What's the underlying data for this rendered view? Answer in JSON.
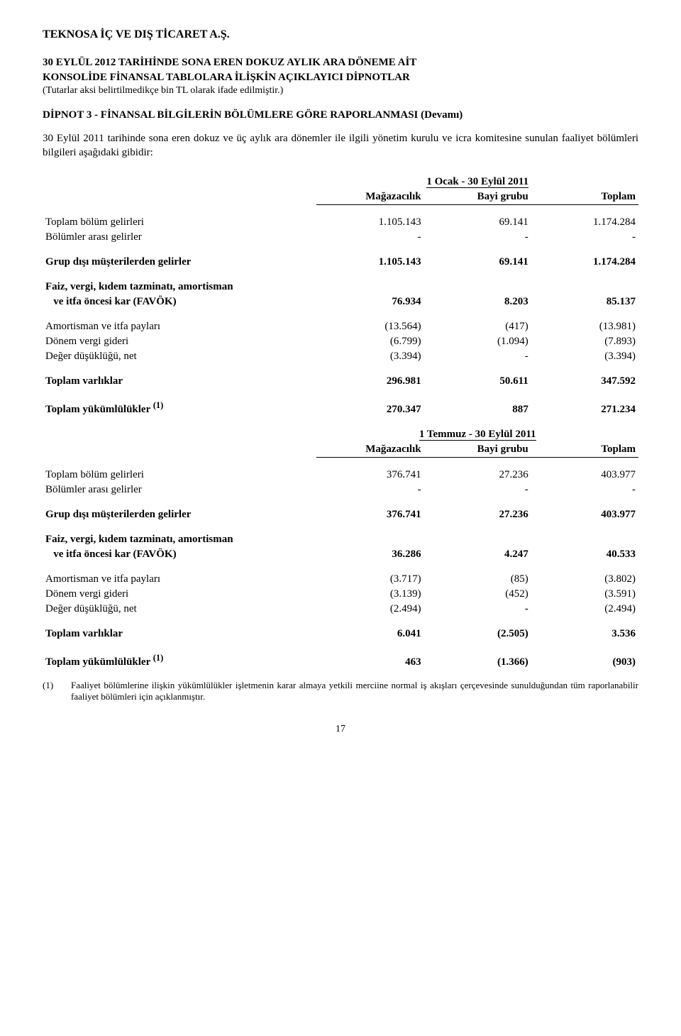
{
  "header": {
    "company": "TEKNOSA İÇ VE DIŞ TİCARET A.Ş.",
    "line1": "30 EYLÜL 2012 TARİHİNDE SONA EREN DOKUZ AYLIK ARA DÖNEME AİT",
    "line2": "KONSOLİDE FİNANSAL TABLOLARA İLİŞKİN AÇIKLAYICI DİPNOTLAR",
    "line3": "(Tutarlar aksi belirtilmedikçe bin TL olarak ifade edilmiştir.)"
  },
  "note": {
    "title": "DİPNOT 3 - FİNANSAL BİLGİLERİN BÖLÜMLERE GÖRE RAPORLANMASI (Devamı)",
    "intro": "30 Eylül 2011 tarihinde sona eren dokuz ve üç aylık ara dönemler ile ilgili yönetim kurulu ve icra komitesine sunulan faaliyet bölümleri bilgileri aşağıdaki gibidir:"
  },
  "cols": {
    "c1": "Mağazacılık",
    "c2": "Bayi grubu",
    "c3": "Toplam"
  },
  "periods": {
    "p1": "1 Ocak - 30 Eylül 2011",
    "p2": "1 Temmuz - 30 Eylül 2011"
  },
  "labels": {
    "toplam_bolum": "Toplam bölüm gelirleri",
    "bolumler_arasi": "Bölümler arası gelirler",
    "grup_disi": "Grup dışı müşterilerden gelirler",
    "favok1": "Faiz, vergi, kıdem tazminatı, amortisman",
    "favok2": "   ve itfa öncesi kar (FAVÖK)",
    "amortisman": "Amortisman ve itfa payları",
    "donem_vergi": "Dönem vergi gideri",
    "deger_dusuk": "Değer düşüklüğü, net",
    "toplam_varlik": "Toplam varlıklar",
    "toplam_yukum": "Toplam yükümlülükler ",
    "sup": "(1)"
  },
  "t1": {
    "r1": {
      "c1": "1.105.143",
      "c2": "69.141",
      "c3": "1.174.284"
    },
    "r2": {
      "c1": "-",
      "c2": "-",
      "c3": "-"
    },
    "r3": {
      "c1": "1.105.143",
      "c2": "69.141",
      "c3": "1.174.284"
    },
    "r4": {
      "c1": "76.934",
      "c2": "8.203",
      "c3": "85.137"
    },
    "r5": {
      "c1": "(13.564)",
      "c2": "(417)",
      "c3": "(13.981)"
    },
    "r6": {
      "c1": "(6.799)",
      "c2": "(1.094)",
      "c3": "(7.893)"
    },
    "r7": {
      "c1": "(3.394)",
      "c2": "-",
      "c3": "(3.394)"
    },
    "r8": {
      "c1": "296.981",
      "c2": "50.611",
      "c3": "347.592"
    },
    "r9": {
      "c1": "270.347",
      "c2": "887",
      "c3": "271.234"
    }
  },
  "t2": {
    "r1": {
      "c1": "376.741",
      "c2": "27.236",
      "c3": "403.977"
    },
    "r2": {
      "c1": "-",
      "c2": "-",
      "c3": "-"
    },
    "r3": {
      "c1": "376.741",
      "c2": "27.236",
      "c3": "403.977"
    },
    "r4": {
      "c1": "36.286",
      "c2": "4.247",
      "c3": "40.533"
    },
    "r5": {
      "c1": "(3.717)",
      "c2": "(85)",
      "c3": "(3.802)"
    },
    "r6": {
      "c1": "(3.139)",
      "c2": "(452)",
      "c3": "(3.591)"
    },
    "r7": {
      "c1": "(2.494)",
      "c2": "-",
      "c3": "(2.494)"
    },
    "r8": {
      "c1": "6.041",
      "c2": "(2.505)",
      "c3": "3.536"
    },
    "r9": {
      "c1": "463",
      "c2": "(1.366)",
      "c3": "(903)"
    }
  },
  "footnote": {
    "marker": "(1)",
    "text": "Faaliyet bölümlerine ilişkin yükümlülükler işletmenin karar almaya yetkili merciine normal iş akışları çerçevesinde sunulduğundan tüm raporlanabilir faaliyet bölümleri için açıklanmıştır."
  },
  "pagenum": "17"
}
